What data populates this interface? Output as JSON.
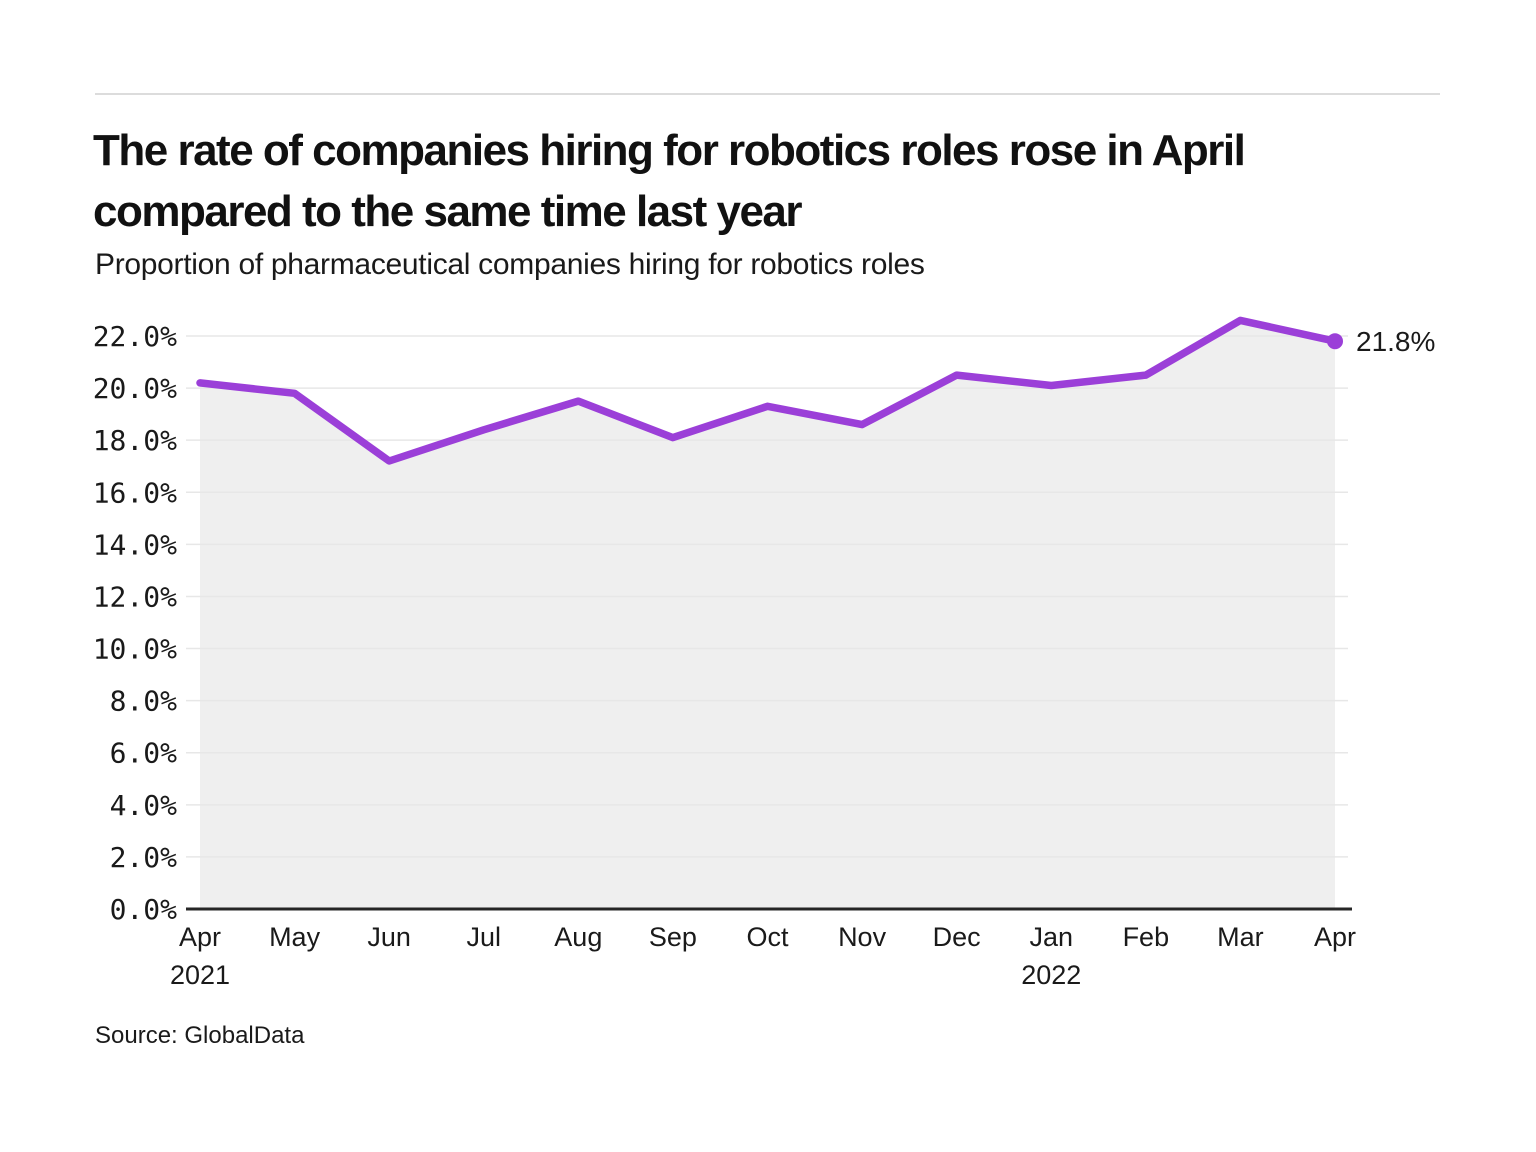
{
  "page": {
    "source": "Source: GlobalData"
  },
  "chart_data": {
    "type": "area",
    "title": "The rate of companies hiring for robotics roles rose in April compared to the same time last year",
    "subtitle": "Proportion of pharmaceutical companies hiring for robotics roles",
    "categories": [
      "Apr",
      "May",
      "Jun",
      "Jul",
      "Aug",
      "Sep",
      "Oct",
      "Nov",
      "Dec",
      "Jan",
      "Feb",
      "Mar",
      "Apr"
    ],
    "year_labels": [
      {
        "index": 0,
        "label": "2021"
      },
      {
        "index": 9,
        "label": "2022"
      }
    ],
    "series": [
      {
        "name": "Proportion of pharmaceutical companies hiring for robotics roles",
        "values": [
          20.2,
          19.8,
          17.2,
          18.4,
          19.5,
          18.1,
          19.3,
          18.6,
          20.5,
          20.1,
          20.5,
          22.6,
          21.8
        ]
      }
    ],
    "end_label": "21.8%",
    "xlabel": "",
    "ylabel": "",
    "ylim": [
      0,
      22
    ],
    "y_ticks": [
      0,
      2,
      4,
      6,
      8,
      10,
      12,
      14,
      16,
      18,
      20,
      22
    ],
    "y_tick_labels": [
      "0.0%",
      "2.0%",
      "4.0%",
      "6.0%",
      "8.0%",
      "10.0%",
      "12.0%",
      "14.0%",
      "16.0%",
      "18.0%",
      "20.0%",
      "22.0%"
    ],
    "grid": true,
    "legend": "none",
    "colors": {
      "line": "#9B3FD8",
      "marker": "#9B3FD8",
      "area_fill": "#EFEFEF",
      "grid": "#E7E7E7",
      "axis": "#262626",
      "text": "#1A1A1A",
      "divider": "#DCDCDC"
    }
  }
}
